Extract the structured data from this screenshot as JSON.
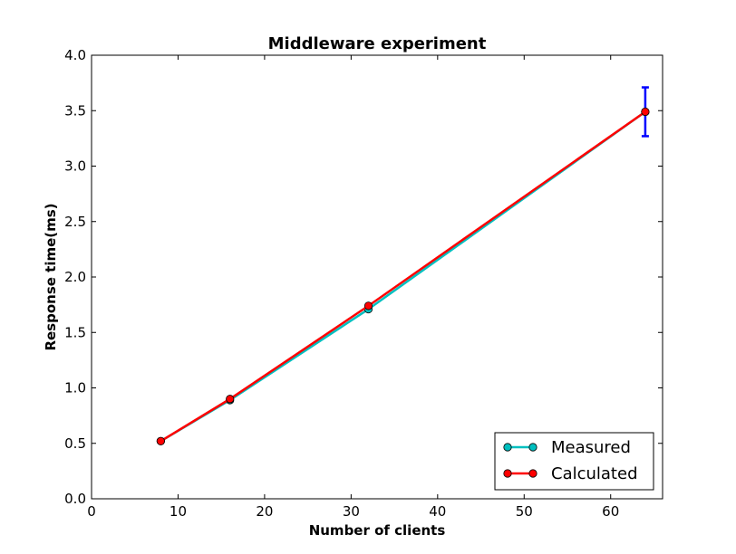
{
  "chart_data": {
    "type": "line",
    "title": "Middleware experiment",
    "xlabel": "Number of clients",
    "ylabel": "Response time(ms)",
    "xlim": [
      0,
      66
    ],
    "ylim": [
      0.0,
      4.0
    ],
    "x_ticks": [
      0,
      10,
      20,
      30,
      40,
      50,
      60
    ],
    "x_tick_labels": [
      "0",
      "10",
      "20",
      "30",
      "40",
      "50",
      "60"
    ],
    "y_ticks": [
      0.0,
      0.5,
      1.0,
      1.5,
      2.0,
      2.5,
      3.0,
      3.5,
      4.0
    ],
    "y_tick_labels": [
      "0.0",
      "0.5",
      "1.0",
      "1.5",
      "2.0",
      "2.5",
      "3.0",
      "3.5",
      "4.0"
    ],
    "grid": false,
    "legend_position": "bottom-right",
    "series": [
      {
        "name": "Measured",
        "color": "#00bfbf",
        "x": [
          8,
          16,
          32,
          64
        ],
        "y": [
          0.52,
          0.89,
          1.71,
          3.49
        ],
        "errors": [
          0.0,
          0.0,
          0.0,
          0.22
        ],
        "error_color": "#0000ff"
      },
      {
        "name": "Calculated",
        "color": "#ff0000",
        "x": [
          8,
          16,
          32,
          64
        ],
        "y": [
          0.52,
          0.9,
          1.74,
          3.49
        ]
      }
    ]
  }
}
